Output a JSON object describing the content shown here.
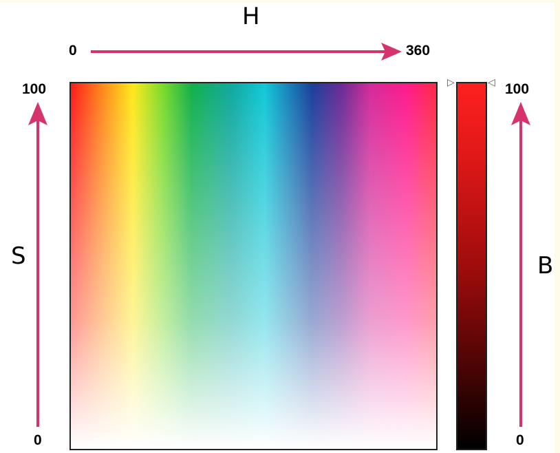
{
  "hue_axis": {
    "letter": "H",
    "min": "0",
    "max": "360"
  },
  "saturation_axis": {
    "letter": "S",
    "min": "0",
    "max": "100"
  },
  "brightness_axis": {
    "letter": "B",
    "min": "0",
    "max": "100"
  },
  "colors": {
    "arrow": "#d6336c",
    "frame": "#222222"
  }
}
